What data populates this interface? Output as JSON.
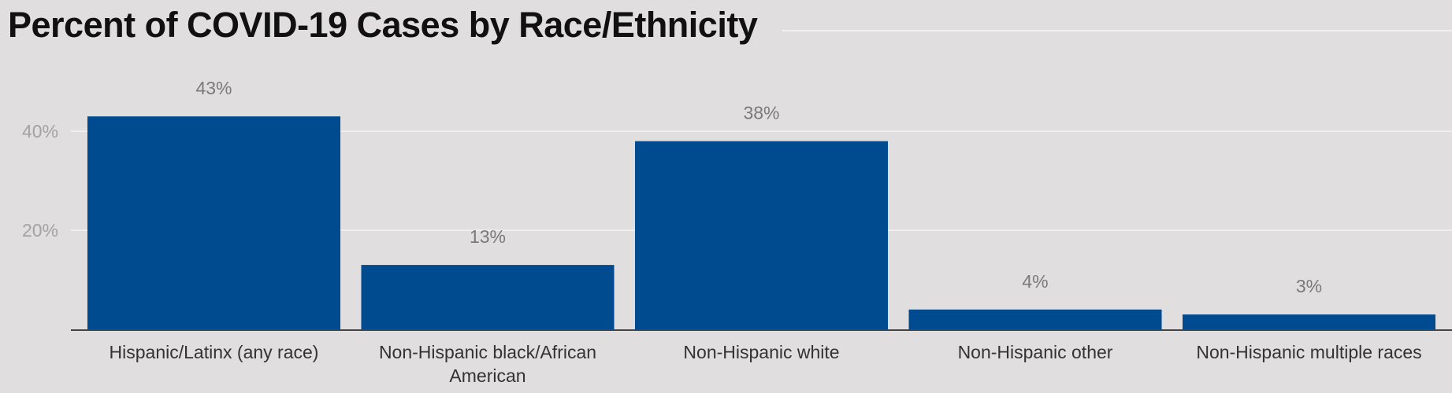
{
  "chart_data": {
    "type": "bar",
    "title": "Percent of COVID-19 Cases by Race/Ethnicity",
    "categories": [
      "Hispanic/Latinx (any race)",
      "Non-Hispanic black/African American",
      "Non-Hispanic white",
      "Non-Hispanic other",
      "Non-Hispanic multiple races"
    ],
    "category_lines": [
      [
        "Hispanic/Latinx (any race)"
      ],
      [
        "Non-Hispanic black/African",
        "American"
      ],
      [
        "Non-Hispanic white"
      ],
      [
        "Non-Hispanic other"
      ],
      [
        "Non-Hispanic multiple races"
      ]
    ],
    "values": [
      43,
      13,
      38,
      4,
      3
    ],
    "value_labels": [
      "43%",
      "13%",
      "38%",
      "4%",
      "3%"
    ],
    "y_ticks": [
      20,
      40
    ],
    "y_tick_labels": [
      "20%",
      "40%"
    ],
    "ylim": [
      0,
      50
    ],
    "grid": true,
    "legend": "none",
    "bar_color": "#004a8f",
    "grid_color": "#f0efef",
    "axis_color": "#444444"
  }
}
